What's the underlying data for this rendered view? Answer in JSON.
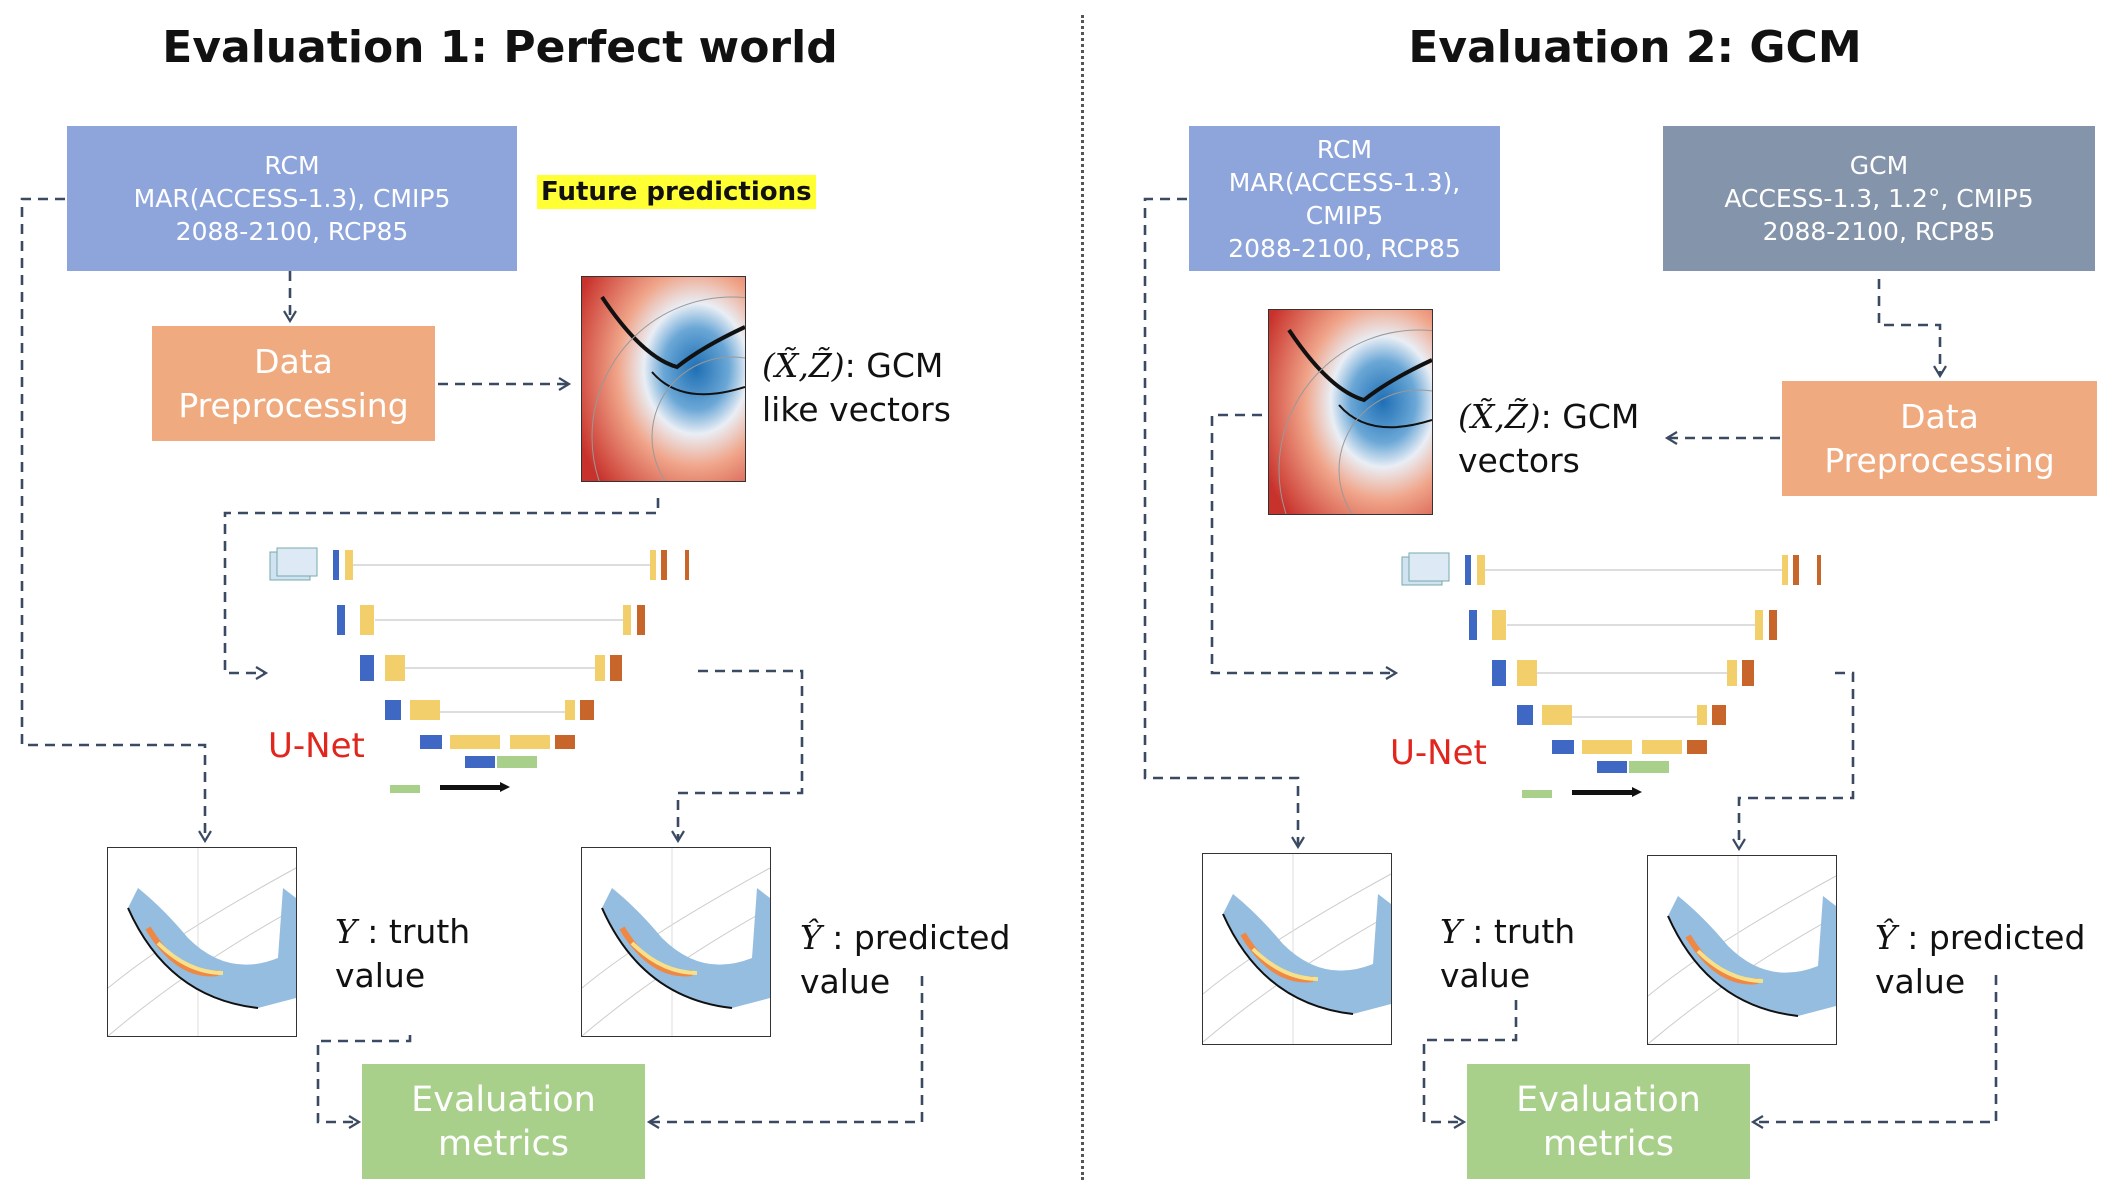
{
  "left": {
    "title": "Evaluation 1: Perfect world",
    "rcm_box": {
      "line1": "RCM",
      "line2": "MAR(ACCESS-1.3), CMIP5",
      "line3": "2088-2100, RCP85"
    },
    "future_label": "Future predictions",
    "preprocessing": {
      "line1": "Data",
      "line2": "Preprocessing"
    },
    "vectors_label": {
      "math": "(X̃,Z̃)",
      "line1_suffix": ": GCM",
      "line2": "like vectors"
    },
    "unet_label": "U-Net",
    "truth_label": {
      "symbol": "Y",
      "line1_suffix": " : truth",
      "line2": "value"
    },
    "pred_label": {
      "symbol": "Ŷ",
      "line1_suffix": " : predicted",
      "line2": "value"
    },
    "metrics": {
      "line1": "Evaluation",
      "line2": "metrics"
    }
  },
  "right": {
    "title": "Evaluation 2: GCM",
    "rcm_box": {
      "line1": "RCM",
      "line2": "MAR(ACCESS-1.3),",
      "line3": "CMIP5",
      "line4": "2088-2100, RCP85"
    },
    "gcm_box": {
      "line1": "GCM",
      "line2": "ACCESS-1.3, 1.2°, CMIP5",
      "line3": "2088-2100, RCP85"
    },
    "preprocessing": {
      "line1": "Data",
      "line2": "Preprocessing"
    },
    "vectors_label": {
      "math": "(X̃,Z̃)",
      "line1_suffix": ": GCM",
      "line2": "vectors"
    },
    "unet_label": "U-Net",
    "truth_label": {
      "symbol": "Y",
      "line1_suffix": " : truth",
      "line2": "value"
    },
    "pred_label": {
      "symbol": "Ŷ",
      "line1_suffix": " : predicted",
      "line2": "value"
    },
    "metrics": {
      "line1": "Evaluation",
      "line2": "metrics"
    }
  },
  "colors": {
    "rcm": "#8ea5dc",
    "gcm": "#8494ab",
    "preprocessing": "#efab7f",
    "metrics": "#a8d08a",
    "highlight": "#ffff33",
    "unet_text": "#e0261d",
    "arrow": "#3b4a63"
  }
}
